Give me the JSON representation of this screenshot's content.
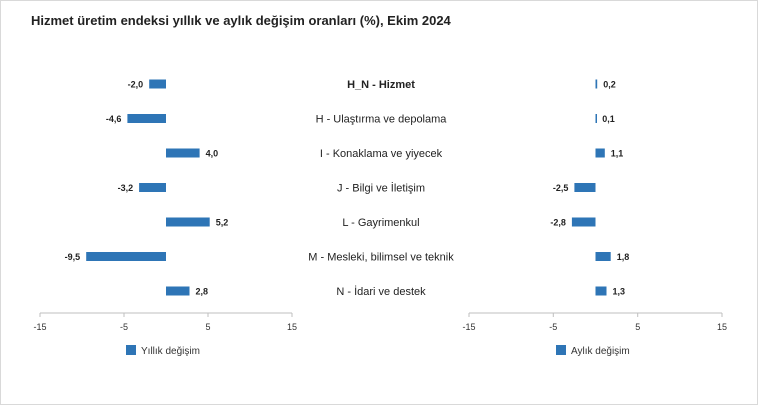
{
  "title": "Hizmet üretim endeksi yıllık ve aylık değişim oranları (%), Ekim 2024",
  "colors": {
    "bar": "#2e75b6",
    "axis": "#bfbfbf"
  },
  "chart_data": {
    "type": "bar",
    "orientation": "horizontal",
    "title": "Hizmet üretim endeksi yıllık ve aylık değişim oranları (%), Ekim 2024",
    "categories": [
      "H_N - Hizmet",
      "H - Ulaştırma ve depolama",
      "I - Konaklama ve yiyecek",
      "J - Bilgi ve İletişim",
      "L - Gayrimenkul",
      "M - Mesleki, bilimsel ve teknik",
      "N - İdari ve destek"
    ],
    "series": [
      {
        "name": "Yıllık değişim",
        "values": [
          -2.0,
          -4.6,
          4.0,
          -3.2,
          5.2,
          -9.5,
          2.8
        ],
        "labels": [
          "-2,0",
          "-4,6",
          "4,0",
          "-3,2",
          "5,2",
          "-9,5",
          "2,8"
        ]
      },
      {
        "name": "Aylık değişim",
        "values": [
          0.2,
          0.1,
          1.1,
          -2.5,
          -2.8,
          1.8,
          1.3
        ],
        "labels": [
          "0,2",
          "0,1",
          "1,1",
          "-2,5",
          "-2,8",
          "1,8",
          "1,3"
        ]
      }
    ],
    "xlim": [
      -15,
      15
    ],
    "xticks": [
      "-15",
      "-5",
      "5",
      "15"
    ],
    "legend_position": "bottom-left",
    "grid": false
  }
}
